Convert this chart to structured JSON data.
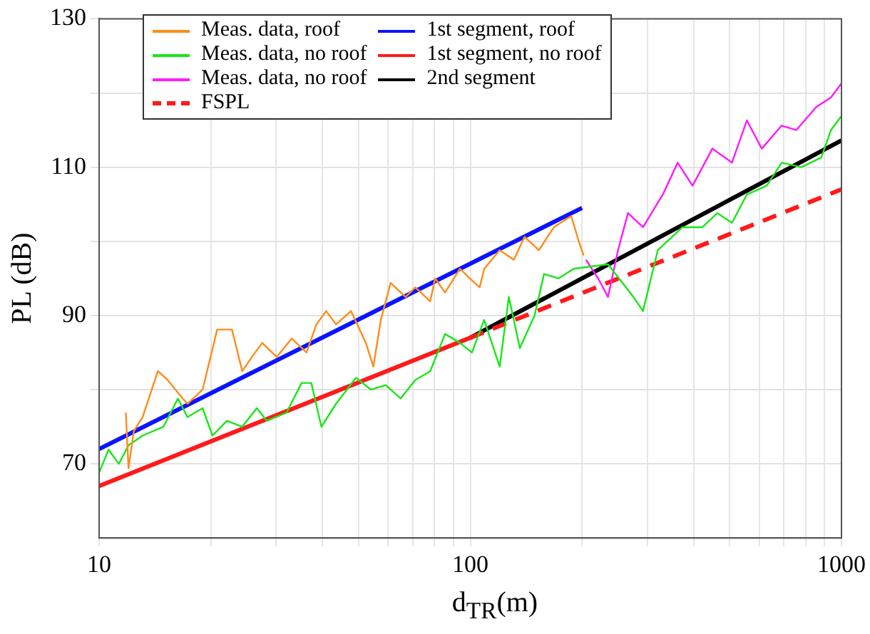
{
  "chart_data": {
    "type": "line",
    "xlabel": "d$_{TR}$(m)",
    "ylabel": "PL (dB)",
    "log": "x",
    "grid": true,
    "legend": "top left",
    "marker": "none",
    "line_style": "solid",
    "xlim": [
      10,
      1000
    ],
    "xticks": [
      10,
      {
        "value": 20,
        "label": null
      },
      {
        "value": 30,
        "label": null
      },
      {
        "value": 40,
        "label": null
      },
      {
        "value": 50,
        "label": null
      },
      {
        "value": 60,
        "label": null
      },
      {
        "value": 70,
        "label": null
      },
      {
        "value": 80,
        "label": null
      },
      {
        "value": 90,
        "label": null
      },
      100,
      {
        "value": 200,
        "label": null
      },
      {
        "value": 300,
        "label": null
      },
      {
        "value": 400,
        "label": null
      },
      {
        "value": 500,
        "label": null
      },
      {
        "value": 600,
        "label": null
      },
      {
        "value": 700,
        "label": null
      },
      {
        "value": 800,
        "label": null
      },
      {
        "value": 900,
        "label": null
      },
      1000
    ],
    "ylim": [
      60,
      130
    ],
    "yticks": [
      70,
      {
        "value": 80,
        "label": null
      },
      90,
      {
        "value": 100,
        "label": null
      },
      110,
      {
        "value": 120,
        "label": null
      },
      130
    ],
    "series": [
      {
        "name": "Meas. data, roof",
        "color": "#ff8c1a",
        "x": [
          11.8,
          12.0,
          12.4,
          13.1,
          14.4,
          15.3,
          16.8,
          17.3,
          19.0,
          20.8,
          22.8,
          24.3,
          25.8,
          27.5,
          30.1,
          33.0,
          36.2,
          38.5,
          40.9,
          43.5,
          47.7,
          52.3,
          54.8,
          57.4,
          61.0,
          66.9,
          71.1,
          78.0,
          80.4,
          85.5,
          93.8,
          99.7,
          106,
          109,
          120,
          131,
          140,
          153,
          168,
          187,
          196,
          202
        ],
        "values": [
          76.9,
          69.4,
          74.4,
          76.3,
          82.5,
          81.3,
          78.8,
          78.1,
          80,
          88.1,
          88.1,
          82.5,
          84.4,
          86.3,
          84.4,
          86.9,
          85,
          88.8,
          90.6,
          88.8,
          90.6,
          86.3,
          83.1,
          89.4,
          94.4,
          92.5,
          93.8,
          91.9,
          95,
          93.1,
          96.3,
          95,
          93.8,
          96.3,
          98.8,
          97.5,
          100.6,
          98.8,
          101.9,
          103.4,
          100,
          98.1
        ]
      },
      {
        "name": "Meas. data, no roof",
        "color": "#19e619",
        "x": [
          10,
          10.6,
          11.3,
          12.0,
          13.1,
          14.9,
          16.3,
          17.3,
          19.0,
          20.2,
          22.1,
          24.3,
          26.6,
          28.3,
          32.0,
          35.1,
          37.3,
          39.7,
          43.5,
          49.2,
          54.0,
          59.2,
          64.9,
          71.1,
          78.0,
          85.5,
          93.8,
          101,
          109,
          120,
          127,
          136,
          149,
          158,
          173,
          190,
          235,
          275,
          292,
          320,
          373,
          422,
          463,
          507,
          556,
          629,
          690,
          780,
          882,
          937,
          1000
        ],
        "values": [
          68.8,
          71.9,
          70,
          72.5,
          73.8,
          75,
          78.8,
          76.3,
          77.5,
          73.8,
          75.8,
          75,
          77.5,
          75.8,
          76.9,
          80.9,
          80.9,
          75,
          78.1,
          81.6,
          80,
          80.6,
          78.8,
          81.3,
          82.5,
          87.5,
          86.3,
          85,
          89.4,
          83.1,
          92.5,
          85.6,
          90,
          95.6,
          95,
          96.3,
          96.9,
          92.5,
          90.6,
          98.8,
          101.9,
          101.9,
          103.8,
          102.5,
          106.3,
          107.5,
          110.6,
          110,
          111.3,
          115,
          116.9
        ]
      },
      {
        "name": "Meas. data, no roof",
        "color": "#ff19ff",
        "x": [
          205,
          221,
          235,
          250,
          266,
          292,
          330,
          362,
          397,
          449,
          507,
          556,
          610,
          690,
          756,
          855,
          937,
          1000
        ],
        "values": [
          97.5,
          95,
          92.5,
          98.8,
          103.8,
          101.9,
          106.3,
          110.6,
          107.5,
          112.5,
          110.6,
          116.3,
          112.5,
          115.6,
          115,
          118.1,
          119.4,
          121.3
        ]
      },
      {
        "name": "FSPL",
        "color": "#ff1a1a",
        "line_style": "dashed",
        "x": [
          100,
          1000
        ],
        "values": [
          87,
          107
        ]
      },
      {
        "name": "1st segment, roof",
        "color": "#0a14ff",
        "x": [
          10,
          200
        ],
        "values": [
          72,
          104.5
        ]
      },
      {
        "name": "1st segment, no roof",
        "color": "#ff1a1a",
        "x": [
          10,
          100
        ],
        "values": [
          67,
          87
        ]
      },
      {
        "name": "2nd segment",
        "color": "#000000",
        "x": [
          100,
          1000
        ],
        "values": [
          87,
          113.6
        ]
      }
    ]
  }
}
